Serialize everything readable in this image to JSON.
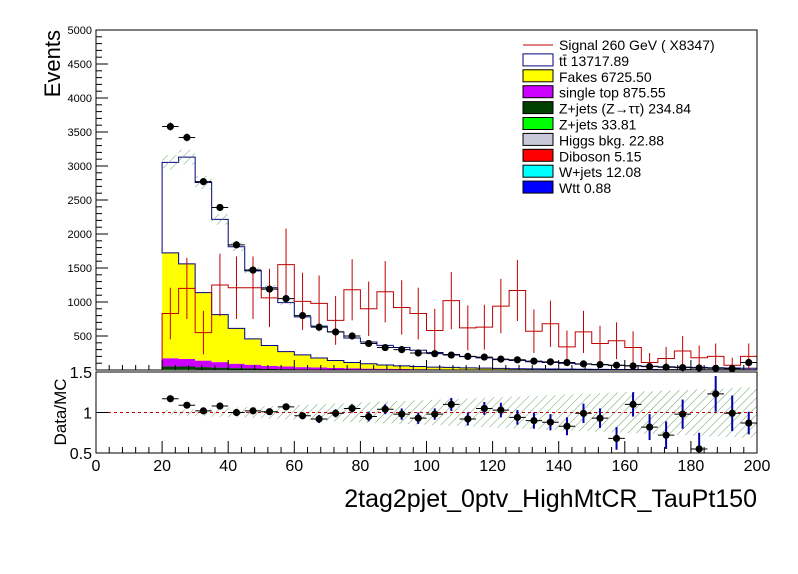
{
  "chart_data": {
    "type": "histogram-stack",
    "xlabel": "2tag2pjet_0ptv_HighMtCR_TauPt150",
    "ylabel": "Events",
    "ratio_ylabel": "Data/MC",
    "xlim": [
      0,
      200
    ],
    "ylim": [
      0,
      5000
    ],
    "ratio_ylim": [
      0.5,
      1.5
    ],
    "x_ticks": [
      0,
      20,
      40,
      60,
      80,
      100,
      120,
      140,
      160,
      180,
      200
    ],
    "y_ticks": [
      500,
      1000,
      1500,
      2000,
      2500,
      3000,
      3500,
      4000,
      4500,
      5000
    ],
    "ratio_ticks": [
      0.5,
      1,
      1.5
    ],
    "bin_edges": [
      20,
      25,
      30,
      35,
      40,
      45,
      50,
      55,
      60,
      65,
      70,
      75,
      80,
      85,
      90,
      95,
      100,
      105,
      110,
      115,
      120,
      125,
      130,
      135,
      140,
      145,
      150,
      155,
      160,
      165,
      170,
      175,
      180,
      185,
      190,
      195,
      200
    ],
    "backgrounds": [
      {
        "name": "Wtt 0.88",
        "color": "#0000ff",
        "values": [
          0,
          0,
          0,
          0,
          0,
          0,
          0,
          0,
          0,
          0,
          0,
          0,
          0,
          0,
          0,
          0,
          0,
          0,
          0,
          0,
          0,
          0,
          0,
          0,
          0,
          0,
          0,
          0,
          0,
          0,
          0,
          0,
          0,
          0,
          0,
          0
        ]
      },
      {
        "name": "W+jets 12.08",
        "color": "#00ffff",
        "values": [
          3,
          3,
          2,
          2,
          1,
          1,
          0,
          0,
          0,
          0,
          0,
          0,
          0,
          0,
          0,
          0,
          0,
          0,
          0,
          0,
          0,
          0,
          0,
          0,
          0,
          0,
          0,
          0,
          0,
          0,
          0,
          0,
          0,
          0,
          0,
          0
        ]
      },
      {
        "name": "Diboson 5.15",
        "color": "#ff0000",
        "values": [
          1,
          1,
          1,
          1,
          1,
          0,
          0,
          0,
          0,
          0,
          0,
          0,
          0,
          0,
          0,
          0,
          0,
          0,
          0,
          0,
          0,
          0,
          0,
          0,
          0,
          0,
          0,
          0,
          0,
          0,
          0,
          0,
          0,
          0,
          0,
          0
        ]
      },
      {
        "name": "Higgs bkg. 22.88",
        "color": "#c8c8d8",
        "values": [
          4,
          4,
          3,
          3,
          2,
          2,
          1,
          1,
          1,
          1,
          0,
          0,
          0,
          0,
          0,
          0,
          0,
          0,
          0,
          0,
          0,
          0,
          0,
          0,
          0,
          0,
          0,
          0,
          0,
          0,
          0,
          0,
          0,
          0,
          0,
          0
        ]
      },
      {
        "name": "Z+jets 33.81",
        "color": "#00ff00",
        "values": [
          5,
          5,
          4,
          4,
          3,
          3,
          2,
          2,
          1,
          1,
          1,
          1,
          0,
          0,
          0,
          0,
          0,
          0,
          0,
          0,
          0,
          0,
          0,
          0,
          0,
          0,
          0,
          0,
          0,
          0,
          0,
          0,
          0,
          0,
          0,
          0
        ]
      },
      {
        "name": "Z+jets (Z→ττ) 234.84",
        "color": "#004000",
        "values": [
          40,
          38,
          32,
          25,
          20,
          16,
          12,
          10,
          8,
          7,
          6,
          5,
          4,
          3,
          2,
          2,
          1,
          1,
          1,
          1,
          0,
          0,
          0,
          0,
          0,
          0,
          0,
          0,
          0,
          0,
          0,
          0,
          0,
          0,
          0,
          0
        ]
      },
      {
        "name": "single top 875.55",
        "color": "#cc00ff",
        "values": [
          120,
          110,
          95,
          80,
          65,
          55,
          45,
          38,
          32,
          27,
          23,
          20,
          17,
          15,
          13,
          11,
          10,
          9,
          8,
          7,
          6,
          5,
          4,
          4,
          3,
          3,
          3,
          2,
          2,
          2,
          1,
          1,
          1,
          1,
          1,
          1
        ]
      },
      {
        "name": "Fakes 6725.50",
        "color": "#ffff00",
        "values": [
          1550,
          1400,
          1000,
          700,
          520,
          380,
          300,
          220,
          180,
          140,
          110,
          85,
          70,
          55,
          45,
          38,
          32,
          28,
          23,
          20,
          17,
          14,
          12,
          11,
          9,
          8,
          7,
          6,
          5,
          5,
          4,
          4,
          3,
          3,
          3,
          2
        ]
      },
      {
        "name": "tt̄ 13717.89",
        "color": "#ffffff",
        "line_color": "#000080",
        "values": [
          1330,
          1570,
          1620,
          1400,
          1200,
          1000,
          850,
          720,
          560,
          470,
          420,
          360,
          320,
          290,
          270,
          240,
          215,
          190,
          165,
          150,
          130,
          120,
          105,
          95,
          85,
          75,
          67,
          60,
          55,
          48,
          43,
          38,
          34,
          30,
          26,
          23
        ]
      }
    ],
    "signal": {
      "name": "Signal 260 GeV ( X8347)",
      "color": "#c00000",
      "values": [
        830,
        1200,
        550,
        1250,
        1210,
        1210,
        1060,
        1550,
        1010,
        980,
        730,
        1180,
        900,
        1150,
        920,
        830,
        580,
        1020,
        620,
        630,
        940,
        1170,
        570,
        680,
        340,
        560,
        390,
        430,
        330,
        110,
        170,
        280,
        180,
        200,
        70,
        200
      ],
      "errors": [
        380,
        450,
        320,
        460,
        460,
        460,
        430,
        530,
        420,
        410,
        360,
        450,
        400,
        450,
        400,
        380,
        320,
        420,
        330,
        330,
        400,
        450,
        320,
        340,
        240,
        310,
        260,
        270,
        240,
        140,
        170,
        220,
        180,
        190,
        110,
        190
      ]
    },
    "data": {
      "x": [
        22.5,
        27.5,
        32.5,
        37.5,
        42.5,
        47.5,
        52.5,
        57.5,
        62.5,
        67.5,
        72.5,
        77.5,
        82.5,
        87.5,
        92.5,
        97.5,
        102.5,
        107.5,
        112.5,
        117.5,
        122.5,
        127.5,
        132.5,
        137.5,
        142.5,
        147.5,
        152.5,
        157.5,
        162.5,
        167.5,
        172.5,
        177.5,
        182.5,
        187.5,
        192.5,
        197.5
      ],
      "y": [
        3580,
        3420,
        2770,
        2390,
        1840,
        1470,
        1190,
        1050,
        800,
        630,
        560,
        500,
        390,
        330,
        300,
        250,
        240,
        220,
        200,
        190,
        160,
        150,
        130,
        120,
        110,
        90,
        80,
        70,
        60,
        50,
        40,
        35,
        30,
        25,
        20,
        110
      ]
    },
    "ratio": {
      "x": [
        22.5,
        27.5,
        32.5,
        37.5,
        42.5,
        47.5,
        52.5,
        57.5,
        62.5,
        67.5,
        72.5,
        77.5,
        82.5,
        87.5,
        92.5,
        97.5,
        102.5,
        107.5,
        112.5,
        117.5,
        122.5,
        127.5,
        132.5,
        137.5,
        142.5,
        147.5,
        152.5,
        157.5,
        162.5,
        167.5,
        172.5,
        177.5,
        182.5,
        187.5,
        192.5,
        197.5
      ],
      "y": [
        1.17,
        1.09,
        1.02,
        1.08,
        1.0,
        1.02,
        1.01,
        1.07,
        0.96,
        0.92,
        0.99,
        1.05,
        0.95,
        1.04,
        0.98,
        0.93,
        0.98,
        1.1,
        0.92,
        1.05,
        1.03,
        0.94,
        0.9,
        0.88,
        0.83,
        0.99,
        0.93,
        0.68,
        1.1,
        0.82,
        0.72,
        0.98,
        0.55,
        1.23,
        0.99,
        0.87
      ],
      "errors": [
        0.03,
        0.03,
        0.03,
        0.03,
        0.03,
        0.03,
        0.04,
        0.04,
        0.04,
        0.05,
        0.05,
        0.05,
        0.06,
        0.06,
        0.07,
        0.07,
        0.07,
        0.08,
        0.08,
        0.08,
        0.09,
        0.09,
        0.1,
        0.1,
        0.11,
        0.12,
        0.12,
        0.14,
        0.15,
        0.16,
        0.17,
        0.18,
        0.2,
        0.22,
        0.22,
        0.14
      ]
    },
    "legend_position": "top-right",
    "grid": false
  }
}
